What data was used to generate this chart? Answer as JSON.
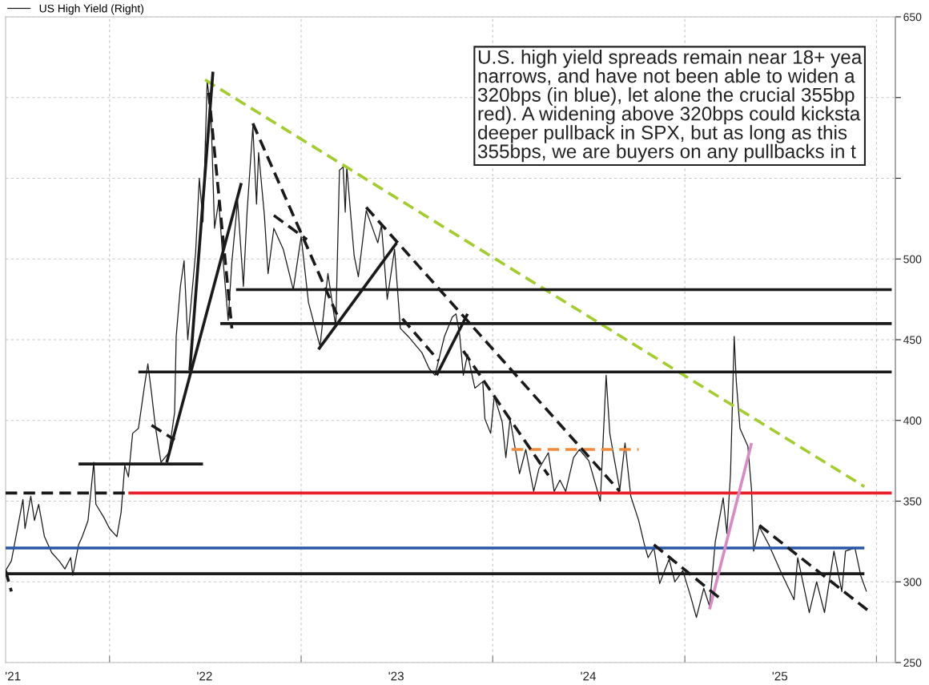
{
  "chart_data": {
    "type": "line",
    "xlim": [
      "2021-06-17",
      "2026-02-06"
    ],
    "xticks": [
      {
        "value": "2021-07-01",
        "label": "'21"
      },
      {
        "value": "2022-01-01",
        "label": null
      },
      {
        "value": "2022-07-01",
        "label": "'22"
      },
      {
        "value": "2023-01-01",
        "label": null
      },
      {
        "value": "2023-07-01",
        "label": "'23"
      },
      {
        "value": "2024-01-01",
        "label": null
      },
      {
        "value": "2024-07-01",
        "label": "'24"
      },
      {
        "value": "2025-01-01",
        "label": null
      },
      {
        "value": "2025-07-01",
        "label": "'25"
      },
      {
        "value": "2026-01-01",
        "label": null
      }
    ],
    "ylim": [
      250,
      650
    ],
    "yticks": [
      250,
      300,
      350,
      400,
      450,
      500,
      {
        "value": 550,
        "label": null
      },
      {
        "value": 600,
        "label": null
      },
      650
    ],
    "grid": true,
    "legend": "top left",
    "annotations": [
      "U.S. high yield spreads remain near 18+ yea\nnarrows, and have not been able to widen a\n320bps (in blue), let alone the crucial 355bp\nred). A widening above 320bps could kicksta\ndeeper pullback in SPX, but as long as this \n355bps, we are buyers on any pullbacks in t"
    ],
    "series": [
      {
        "name": "US High Yield (Right)",
        "color": "#1a1a1a",
        "line_style": "solid",
        "x": [
          "2021-06-17",
          "2021-06-28",
          "2021-07-20",
          "2021-07-24",
          "2021-08-04",
          "2021-08-11",
          "2021-08-19",
          "2021-08-30",
          "2021-09-13",
          "2021-09-27",
          "2021-10-08",
          "2021-10-19",
          "2021-10-23",
          "2021-11-03",
          "2021-11-10",
          "2021-11-21",
          "2021-12-02",
          "2021-12-06",
          "2021-12-21",
          "2022-01-01",
          "2022-01-15",
          "2022-01-23",
          "2022-01-30",
          "2022-02-06",
          "2022-02-14",
          "2022-02-25",
          "2022-03-08",
          "2022-03-15",
          "2022-03-22",
          "2022-03-29",
          "2022-04-09",
          "2022-04-24",
          "2022-05-05",
          "2022-05-08",
          "2022-05-16",
          "2022-05-23",
          "2022-05-30",
          "2022-06-14",
          "2022-06-21",
          "2022-06-28",
          "2022-07-06",
          "2022-07-13",
          "2022-07-20",
          "2022-07-28",
          "2022-08-04",
          "2022-08-15",
          "2022-08-22",
          "2022-09-02",
          "2022-09-13",
          "2022-09-20",
          "2022-10-01",
          "2022-10-08",
          "2022-10-12",
          "2022-10-23",
          "2022-10-30",
          "2022-11-10",
          "2022-11-28",
          "2022-12-17",
          "2023-01-01",
          "2023-01-15",
          "2023-02-06",
          "2023-02-21",
          "2023-03-08",
          "2023-03-15",
          "2023-03-22",
          "2023-03-26",
          "2023-03-29",
          "2023-04-05",
          "2023-04-12",
          "2023-04-20",
          "2023-05-05",
          "2023-05-27",
          "2023-06-03",
          "2023-06-14",
          "2023-06-28",
          "2023-07-09",
          "2023-07-24",
          "2023-08-19",
          "2023-09-02",
          "2023-09-13",
          "2023-10-01",
          "2023-10-16",
          "2023-10-23",
          "2023-10-30",
          "2023-11-06",
          "2023-11-14",
          "2023-11-28",
          "2023-12-13",
          "2023-12-17",
          "2023-12-28",
          "2024-01-04",
          "2024-01-19",
          "2024-01-26",
          "2024-02-03",
          "2024-02-21",
          "2024-03-04",
          "2024-03-19",
          "2024-03-29",
          "2024-04-16",
          "2024-04-27",
          "2024-05-08",
          "2024-05-19",
          "2024-06-03",
          "2024-06-14",
          "2024-07-02",
          "2024-07-24",
          "2024-08-04",
          "2024-08-11",
          "2024-08-19",
          "2024-08-30",
          "2024-09-09",
          "2024-09-20",
          "2024-10-05",
          "2024-10-16",
          "2024-10-23",
          "2024-11-03",
          "2024-11-14",
          "2024-12-02",
          "2024-12-13",
          "2024-12-28",
          "2025-01-12",
          "2025-01-23",
          "2025-02-06",
          "2025-02-17",
          "2025-02-28",
          "2025-03-15",
          "2025-03-22",
          "2025-03-29",
          "2025-04-05",
          "2025-04-09",
          "2025-04-16",
          "2025-05-01",
          "2025-05-08",
          "2025-05-12",
          "2025-05-23",
          "2025-06-10",
          "2025-07-06",
          "2025-07-28",
          "2025-08-04",
          "2025-08-26",
          "2025-09-09",
          "2025-09-24",
          "2025-10-12",
          "2025-10-27",
          "2025-11-03",
          "2025-11-21",
          "2025-12-02",
          "2025-12-13"
        ],
        "values": [
          307,
          313,
          351,
          333,
          353,
          338,
          348,
          328,
          318,
          313,
          308,
          315,
          304,
          323,
          328,
          338,
          374,
          348,
          340,
          333,
          328,
          343,
          372,
          365,
          392,
          395,
          420,
          435,
          417,
          397,
          374,
          380,
          405,
          452,
          483,
          499,
          450,
          504,
          550,
          523,
          610,
          593,
          519,
          536,
          504,
          462,
          498,
          536,
          483,
          529,
          582,
          534,
          566,
          527,
          491,
          519,
          506,
          481,
          514,
          473,
          446,
          491,
          458,
          555,
          557,
          529,
          557,
          529,
          502,
          489,
          530,
          510,
          521,
          475,
          506,
          457,
          452,
          442,
          432,
          428,
          452,
          464,
          466,
          453,
          428,
          441,
          420,
          424,
          401,
          392,
          415,
          399,
          377,
          401,
          367,
          382,
          356,
          370,
          380,
          356,
          363,
          356,
          377,
          382,
          375,
          350,
          428,
          392,
          377,
          357,
          386,
          353,
          338,
          323,
          315,
          321,
          299,
          314,
          300,
          307,
          291,
          278,
          296,
          285,
          325,
          352,
          330,
          367,
          452,
          424,
          395,
          384,
          357,
          319,
          334,
          323,
          304,
          289,
          315,
          281,
          300,
          281,
          319,
          294,
          319,
          321,
          304,
          294
        ]
      },
      {
        "color": "#a3cc2d",
        "line_style": "dashed",
        "x": [
          "2022-07-02",
          "2025-12-09"
        ],
        "values": [
          611,
          359
        ]
      },
      {
        "color": "#1a1a1a",
        "line_style": "solid",
        "x": [
          "2022-08-30",
          "2026-01-30"
        ],
        "values": [
          481,
          481
        ]
      },
      {
        "color": "#1a1a1a",
        "line_style": "solid",
        "x": [
          "2022-07-31",
          "2026-01-30"
        ],
        "values": [
          460,
          460
        ]
      },
      {
        "color": "#1a1a1a",
        "line_style": "solid",
        "x": [
          "2022-02-25",
          "2026-01-30"
        ],
        "values": [
          430,
          430
        ]
      },
      {
        "color": "#1a1a1a",
        "line_style": "solid",
        "x": [
          "2021-11-03",
          "2022-06-28"
        ],
        "values": [
          373,
          373
        ]
      },
      {
        "color": "#1a1a1a",
        "line_style": "dashed",
        "x": [
          "2021-06-17",
          "2022-02-03"
        ],
        "values": [
          355,
          355
        ]
      },
      {
        "color": "#e8202a",
        "line_style": "solid",
        "x": [
          "2022-02-06",
          "2026-01-30"
        ],
        "values": [
          355,
          355
        ]
      },
      {
        "color": "#2a56a6",
        "line_style": "solid",
        "x": [
          "2021-06-17",
          "2025-12-09"
        ],
        "values": [
          321,
          321
        ]
      },
      {
        "color": "#1a1a1a",
        "line_style": "solid",
        "x": [
          "2021-06-17",
          "2025-12-09"
        ],
        "values": [
          305,
          305
        ]
      },
      {
        "color": "#f28a3c",
        "line_style": "dashed",
        "x": [
          "2024-02-06",
          "2024-10-05"
        ],
        "values": [
          382,
          382
        ]
      },
      {
        "color": "#d98ac4",
        "line_style": "solid",
        "x": [
          "2025-02-17",
          "2025-05-08"
        ],
        "values": [
          283,
          386
        ]
      },
      {
        "color": "#1a1a1a",
        "line_style": "dashed",
        "x": [
          "2021-06-17",
          "2021-06-28"
        ],
        "values": [
          307,
          294
        ]
      },
      {
        "color": "#1a1a1a",
        "line_style": "dashed",
        "x": [
          "2022-03-22",
          "2022-05-05"
        ],
        "values": [
          397,
          388
        ]
      },
      {
        "color": "#1a1a1a",
        "line_style": "solid",
        "x": [
          "2022-04-20",
          "2022-09-09"
        ],
        "values": [
          374,
          547
        ]
      },
      {
        "color": "#1a1a1a",
        "line_style": "solid",
        "x": [
          "2022-06-03",
          "2022-07-17"
        ],
        "values": [
          431,
          616
        ]
      },
      {
        "color": "#1a1a1a",
        "line_style": "dashed",
        "x": [
          "2022-07-09",
          "2022-08-22"
        ],
        "values": [
          603,
          457
        ]
      },
      {
        "color": "#1a1a1a",
        "line_style": "dashed",
        "x": [
          "2022-10-01",
          "2023-03-15"
        ],
        "values": [
          584,
          462
        ]
      },
      {
        "color": "#1a1a1a",
        "line_style": "dashed",
        "x": [
          "2022-11-10",
          "2023-01-12"
        ],
        "values": [
          527,
          512
        ]
      },
      {
        "color": "#1a1a1a",
        "line_style": "solid",
        "x": [
          "2023-02-03",
          "2023-07-02"
        ],
        "values": [
          444,
          510
        ]
      },
      {
        "color": "#1a1a1a",
        "line_style": "dashed",
        "x": [
          "2023-05-05",
          "2024-08-30"
        ],
        "values": [
          532,
          356
        ]
      },
      {
        "color": "#1a1a1a",
        "line_style": "solid",
        "x": [
          "2023-09-16",
          "2023-11-14"
        ],
        "values": [
          428,
          466
        ]
      },
      {
        "color": "#1a1a1a",
        "line_style": "dashed",
        "x": [
          "2023-07-13",
          "2023-09-20"
        ],
        "values": [
          463,
          437
        ]
      },
      {
        "color": "#1a1a1a",
        "line_style": "dashed",
        "x": [
          "2023-11-06",
          "2024-04-16"
        ],
        "values": [
          443,
          366
        ]
      },
      {
        "color": "#1a1a1a",
        "line_style": "dashed",
        "x": [
          "2024-11-03",
          "2025-03-08"
        ],
        "values": [
          323,
          290
        ]
      },
      {
        "color": "#1a1a1a",
        "line_style": "dashed",
        "x": [
          "2025-05-23",
          "2025-12-17"
        ],
        "values": [
          335,
          282
        ]
      }
    ]
  }
}
